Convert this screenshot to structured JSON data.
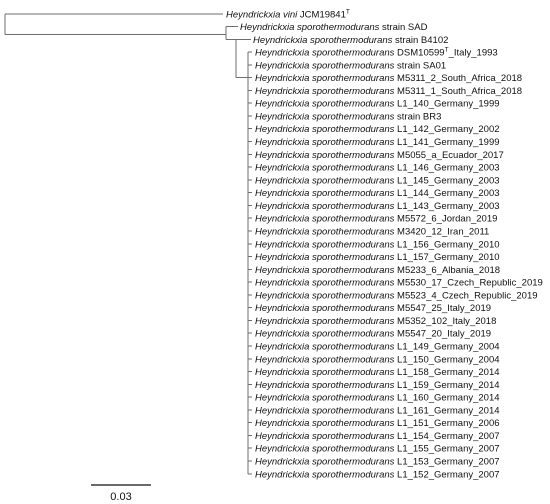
{
  "tree": {
    "genus_species": "Heyndrickxia sporothermodurans",
    "outgroup": {
      "species": "Heyndrickxia vini",
      "strain": "JCM19841",
      "superscript": "T"
    },
    "leaves": [
      {
        "species": "Heyndrickxia sporothermodurans",
        "strain": "strain SAD"
      },
      {
        "species": "Heyndrickxia sporothermodurans",
        "strain": "strain B4102"
      },
      {
        "species": "Heyndrickxia sporothermodurans",
        "strain": "DSM10599",
        "superscript": "T",
        "suffix": "_Italy_1993"
      },
      {
        "species": "Heyndrickxia sporothermodurans",
        "strain": "strain SA01"
      },
      {
        "species": "Heyndrickxia sporothermodurans",
        "strain": "M5311_2_South_Africa_2018"
      },
      {
        "species": "Heyndrickxia sporothermodurans",
        "strain": "M5311_1_South_Africa_2018"
      },
      {
        "species": "Heyndrickxia sporothermodurans",
        "strain": "L1_140_Germany_1999"
      },
      {
        "species": "Heyndrickxia sporothermodurans",
        "strain": "strain BR3"
      },
      {
        "species": "Heyndrickxia sporothermodurans",
        "strain": "L1_142_Germany_2002"
      },
      {
        "species": "Heyndrickxia sporothermodurans",
        "strain": "L1_141_Germany_1999"
      },
      {
        "species": "Heyndrickxia sporothermodurans",
        "strain": "M5055_a_Ecuador_2017"
      },
      {
        "species": "Heyndrickxia sporothermodurans",
        "strain": "L1_146_Germany_2003"
      },
      {
        "species": "Heyndrickxia sporothermodurans",
        "strain": "L1_145_Germany_2003"
      },
      {
        "species": "Heyndrickxia sporothermodurans",
        "strain": "L1_144_Germany_2003"
      },
      {
        "species": "Heyndrickxia sporothermodurans",
        "strain": "L1_143_Germany_2003"
      },
      {
        "species": "Heyndrickxia sporothermodurans",
        "strain": "M5572_6_Jordan_2019"
      },
      {
        "species": "Heyndrickxia sporothermodurans",
        "strain": "M3420_12_Iran_2011"
      },
      {
        "species": "Heyndrickxia sporothermodurans",
        "strain": "L1_156_Germany_2010"
      },
      {
        "species": "Heyndrickxia sporothermodurans",
        "strain": "L1_157_Germany_2010"
      },
      {
        "species": "Heyndrickxia sporothermodurans",
        "strain": "M5233_6_Albania_2018"
      },
      {
        "species": "Heyndrickxia sporothermodurans",
        "strain": "M5530_17_Czech_Republic_2019"
      },
      {
        "species": "Heyndrickxia sporothermodurans",
        "strain": "M5523_4_Czech_Republic_2019"
      },
      {
        "species": "Heyndrickxia sporothermodurans",
        "strain": "M5547_25_Italy_2019"
      },
      {
        "species": "Heyndrickxia sporothermodurans",
        "strain": "M5352_102_Italy_2018"
      },
      {
        "species": "Heyndrickxia sporothermodurans",
        "strain": "M5547_20_Italy_2019"
      },
      {
        "species": "Heyndrickxia sporothermodurans",
        "strain": "L1_149_Germany_2004"
      },
      {
        "species": "Heyndrickxia sporothermodurans",
        "strain": "L1_150_Germany_2004"
      },
      {
        "species": "Heyndrickxia sporothermodurans",
        "strain": "L1_158_Germany_2014"
      },
      {
        "species": "Heyndrickxia sporothermodurans",
        "strain": "L1_159_Germany_2014"
      },
      {
        "species": "Heyndrickxia sporothermodurans",
        "strain": "L1_160_Germany_2014"
      },
      {
        "species": "Heyndrickxia sporothermodurans",
        "strain": "L1_161_Germany_2014"
      },
      {
        "species": "Heyndrickxia sporothermodurans",
        "strain": "L1_151_Germany_2006"
      },
      {
        "species": "Heyndrickxia sporothermodurans",
        "strain": "L1_154_Germany_2007"
      },
      {
        "species": "Heyndrickxia sporothermodurans",
        "strain": "L1_155_Germany_2007"
      },
      {
        "species": "Heyndrickxia sporothermodurans",
        "strain": "L1_153_Germany_2007"
      },
      {
        "species": "Heyndrickxia sporothermodurans",
        "strain": "L1_152_Germany_2007"
      }
    ]
  },
  "scale_bar": {
    "label": "0.03"
  },
  "colors": {
    "branch": "#6e6e6e",
    "text": "#111111",
    "background": "#ffffff"
  }
}
